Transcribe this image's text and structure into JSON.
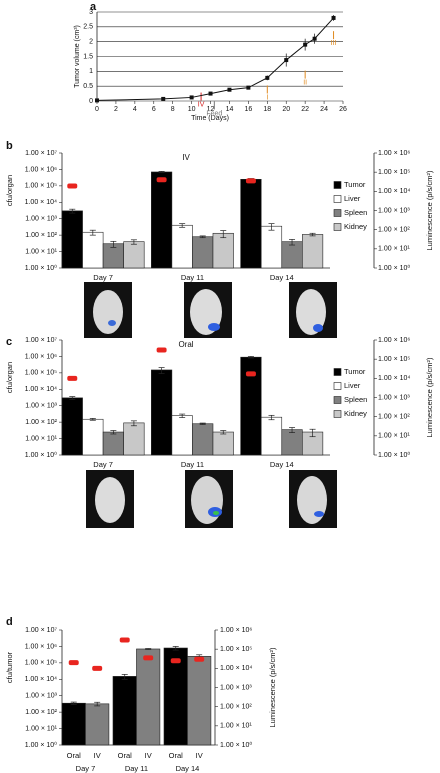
{
  "chart_data": [
    {
      "panel": "a",
      "type": "line",
      "x_label": "Time (Days)",
      "y_label": "Tumor volume (cm³)",
      "x": [
        0,
        7,
        10,
        12,
        14,
        16,
        18,
        20,
        22,
        23,
        25
      ],
      "values": [
        0.02,
        0.07,
        0.12,
        0.25,
        0.38,
        0.45,
        0.78,
        1.38,
        1.9,
        2.1,
        2.8
      ],
      "errors": [
        0.01,
        0.02,
        0.03,
        0.03,
        0.04,
        0.05,
        0.08,
        0.22,
        0.2,
        0.17,
        0.1
      ],
      "color": "#111111",
      "xlim": [
        0,
        26
      ],
      "xticks": [
        0,
        2,
        4,
        6,
        8,
        10,
        12,
        14,
        16,
        18,
        20,
        22,
        24,
        26
      ],
      "ylim": [
        0,
        3
      ],
      "yticks": [
        0,
        0.5,
        1,
        1.5,
        2,
        2.5,
        3
      ],
      "grid": true,
      "annotations": [
        {
          "text": "IV",
          "x": 11,
          "y": -0.12,
          "color": "#d42020"
        },
        {
          "text": "Feed",
          "x": 12.4,
          "y": -0.42,
          "color": "#777777"
        },
        {
          "text": "I",
          "x": 18,
          "y": 0.12,
          "color": "#e08a1e"
        },
        {
          "text": "II",
          "x": 22,
          "y": 0.62,
          "color": "#e08a1e"
        },
        {
          "text": "III",
          "x": 25,
          "y": 1.95,
          "color": "#e08a1e"
        }
      ]
    },
    {
      "panel": "b",
      "type": "bar",
      "title": "IV",
      "y_label": "cfu/organ",
      "y2_label": "Luminescence (p/s/cm²)",
      "categories": [
        "Day 7",
        "Day 11",
        "Day 14"
      ],
      "log_scale": true,
      "legend": "right",
      "series": [
        {
          "name": "Tumor",
          "color": "#000000",
          "values": [
            3000,
            700000,
            250000
          ],
          "errors": [
            800,
            60000,
            30000
          ],
          "y2_values": [
            19000,
            40000,
            35000
          ]
        },
        {
          "name": "Liver",
          "color": "#ffffff",
          "values": [
            150,
            400,
            350
          ],
          "errors": [
            50,
            100,
            150
          ]
        },
        {
          "name": "Spleen",
          "color": "#808080",
          "values": [
            30,
            80,
            40
          ],
          "errors": [
            12,
            10,
            15
          ]
        },
        {
          "name": "Kidney",
          "color": "#c8c8c8",
          "values": [
            40,
            130,
            110
          ],
          "errors": [
            12,
            60,
            20
          ]
        }
      ],
      "y2_color": "#e8251f",
      "ylim": [
        1,
        10000000
      ],
      "yticks": [
        {
          "value": 1,
          "label": "1.00 × 10⁰"
        },
        {
          "value": 10,
          "label": "1.00 × 10¹"
        },
        {
          "value": 100,
          "label": "1.00 × 10²"
        },
        {
          "value": 1000,
          "label": "1.00 × 10³"
        },
        {
          "value": 10000,
          "label": "1.00 × 10⁴"
        },
        {
          "value": 100000,
          "label": "1.00 × 10⁵"
        },
        {
          "value": 1000000,
          "label": "1.00 × 10⁶"
        },
        {
          "value": 10000000,
          "label": "1.00 × 10⁷"
        }
      ],
      "y2lim": [
        1,
        1000000
      ],
      "y2ticks": [
        {
          "value": 1,
          "label": "1.00 × 10⁰"
        },
        {
          "value": 10,
          "label": "1.00 × 10¹"
        },
        {
          "value": 100,
          "label": "1.00 × 10²"
        },
        {
          "value": 1000,
          "label": "1.00 × 10³"
        },
        {
          "value": 10000,
          "label": "1.00 × 10⁴"
        },
        {
          "value": 100000,
          "label": "1.00 × 10⁵"
        },
        {
          "value": 1000000,
          "label": "1.00 × 10⁶"
        }
      ]
    },
    {
      "panel": "c",
      "type": "bar",
      "title": "Oral",
      "y_label": "cfu/organ",
      "y2_label": "Luminescence (p/s/cm²)",
      "categories": [
        "Day 7",
        "Day 11",
        "Day 14"
      ],
      "log_scale": true,
      "legend": "right",
      "series": [
        {
          "name": "Tumor",
          "color": "#000000",
          "values": [
            3000,
            150000,
            900000
          ],
          "errors": [
            600,
            60000,
            100000
          ],
          "y2_values": [
            10000,
            300000,
            17000
          ]
        },
        {
          "name": "Liver",
          "color": "#ffffff",
          "values": [
            150,
            250,
            200
          ],
          "errors": [
            20,
            60,
            60
          ]
        },
        {
          "name": "Spleen",
          "color": "#808080",
          "values": [
            25,
            80,
            35
          ],
          "errors": [
            6,
            8,
            12
          ]
        },
        {
          "name": "Kidney",
          "color": "#c8c8c8",
          "values": [
            90,
            25,
            25
          ],
          "errors": [
            30,
            6,
            12
          ]
        }
      ],
      "y2_color": "#e8251f",
      "ylim": [
        1,
        10000000
      ],
      "yticks": [
        {
          "value": 1,
          "label": "1.00 × 10⁰"
        },
        {
          "value": 10,
          "label": "1.00 × 10¹"
        },
        {
          "value": 100,
          "label": "1.00 × 10²"
        },
        {
          "value": 1000,
          "label": "1.00 × 10³"
        },
        {
          "value": 10000,
          "label": "1.00 × 10⁴"
        },
        {
          "value": 100000,
          "label": "1.00 × 10⁵"
        },
        {
          "value": 1000000,
          "label": "1.00 × 10⁶"
        },
        {
          "value": 10000000,
          "label": "1.00 × 10⁷"
        }
      ],
      "y2lim": [
        1,
        1000000
      ],
      "y2ticks": [
        {
          "value": 1,
          "label": "1.00 × 10⁰"
        },
        {
          "value": 10,
          "label": "1.00 × 10¹"
        },
        {
          "value": 100,
          "label": "1.00 × 10²"
        },
        {
          "value": 1000,
          "label": "1.00 × 10³"
        },
        {
          "value": 10000,
          "label": "1.00 × 10⁴"
        },
        {
          "value": 100000,
          "label": "1.00 × 10⁵"
        },
        {
          "value": 1000000,
          "label": "1.00 × 10⁶"
        }
      ]
    },
    {
      "panel": "d",
      "type": "bar",
      "y_label": "cfu/tumor",
      "y2_label": "Luminescence (p/s/cm²)",
      "categories": [
        "Day 7",
        "Day 11",
        "Day 14"
      ],
      "log_scale": true,
      "legend": false,
      "series": [
        {
          "name": "Oral",
          "color": "#000000",
          "values": [
            350,
            15000,
            800000
          ],
          "errors": [
            60,
            5000,
            200000
          ],
          "y2_values": [
            20000,
            300000,
            25000
          ]
        },
        {
          "name": "IV",
          "color": "#808080",
          "values": [
            320,
            700000,
            250000
          ],
          "errors": [
            80,
            50000,
            60000
          ],
          "y2_values": [
            10000,
            35000,
            30000
          ]
        }
      ],
      "y2_color": "#e8251f",
      "ylim": [
        1,
        10000000
      ],
      "yticks": [
        {
          "value": 1,
          "label": "1.00 × 10⁰"
        },
        {
          "value": 10,
          "label": "1.00 × 10¹"
        },
        {
          "value": 100,
          "label": "1.00 × 10²"
        },
        {
          "value": 1000,
          "label": "1.00 × 10³"
        },
        {
          "value": 10000,
          "label": "1.00 × 10⁴"
        },
        {
          "value": 100000,
          "label": "1.00 × 10⁵"
        },
        {
          "value": 1000000,
          "label": "1.00 × 10⁶"
        },
        {
          "value": 10000000,
          "label": "1.00 × 10⁷"
        }
      ],
      "y2lim": [
        1,
        1000000
      ],
      "y2ticks": [
        {
          "value": 1,
          "label": "1.00 × 10⁰"
        },
        {
          "value": 10,
          "label": "1.00 × 10¹"
        },
        {
          "value": 100,
          "label": "1.00 × 10²"
        },
        {
          "value": 1000,
          "label": "1.00 × 10³"
        },
        {
          "value": 10000,
          "label": "1.00 × 10⁴"
        },
        {
          "value": 100000,
          "label": "1.00 × 10⁵"
        },
        {
          "value": 1000000,
          "label": "1.00 × 10⁶"
        }
      ]
    }
  ]
}
